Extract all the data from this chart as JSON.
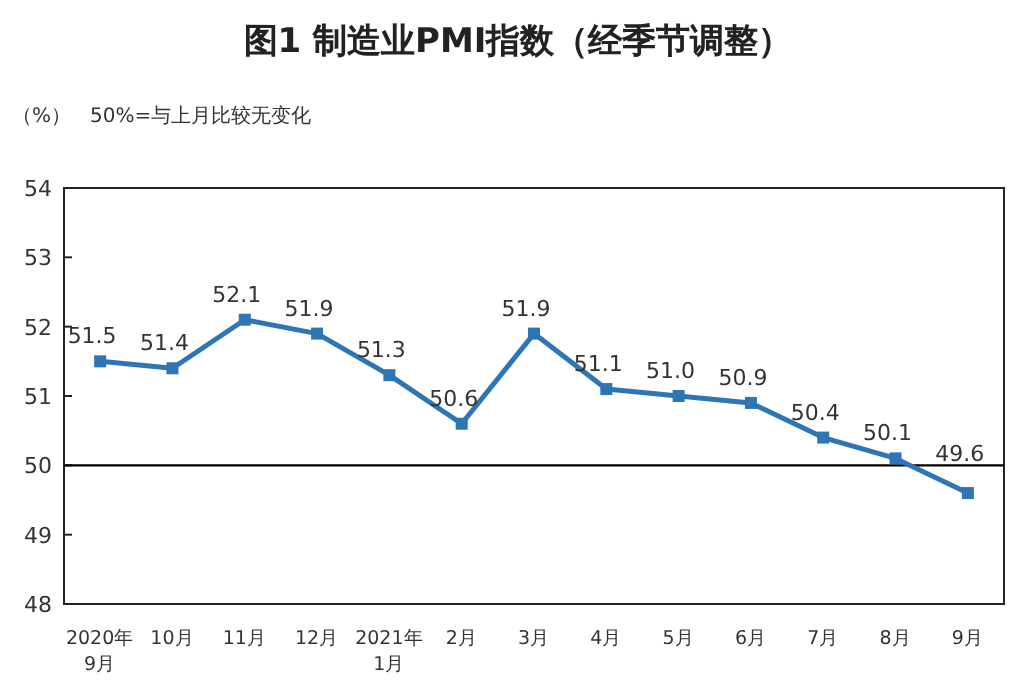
{
  "chart_data": {
    "type": "line",
    "title": "图1 制造业PMI指数（经季节调整）",
    "ylabel": "（%）",
    "annotations": [
      "50%=与上月比较无变化"
    ],
    "categories": [
      "2020年\n9月",
      "10月",
      "11月",
      "12月",
      "2021年\n1月",
      "2月",
      "3月",
      "4月",
      "5月",
      "6月",
      "7月",
      "8月",
      "9月"
    ],
    "series": [
      {
        "color": "#2e75b6",
        "values": [
          51.5,
          51.4,
          52.1,
          51.9,
          51.3,
          50.6,
          51.9,
          51.1,
          51.0,
          50.9,
          50.4,
          50.1,
          49.6
        ],
        "value_labels": [
          "51.5",
          "51.4",
          "52.1",
          "51.9",
          "51.3",
          "50.6",
          "51.9",
          "51.1",
          "51.0",
          "50.9",
          "50.4",
          "50.1",
          "49.6"
        ]
      }
    ],
    "ylim": [
      48,
      54
    ],
    "yticks": [
      48,
      49,
      50,
      51,
      52,
      53,
      54
    ],
    "ref_lines": [
      {
        "axis": "y",
        "value": 50,
        "color": "#000000"
      }
    ],
    "marker": "square"
  }
}
